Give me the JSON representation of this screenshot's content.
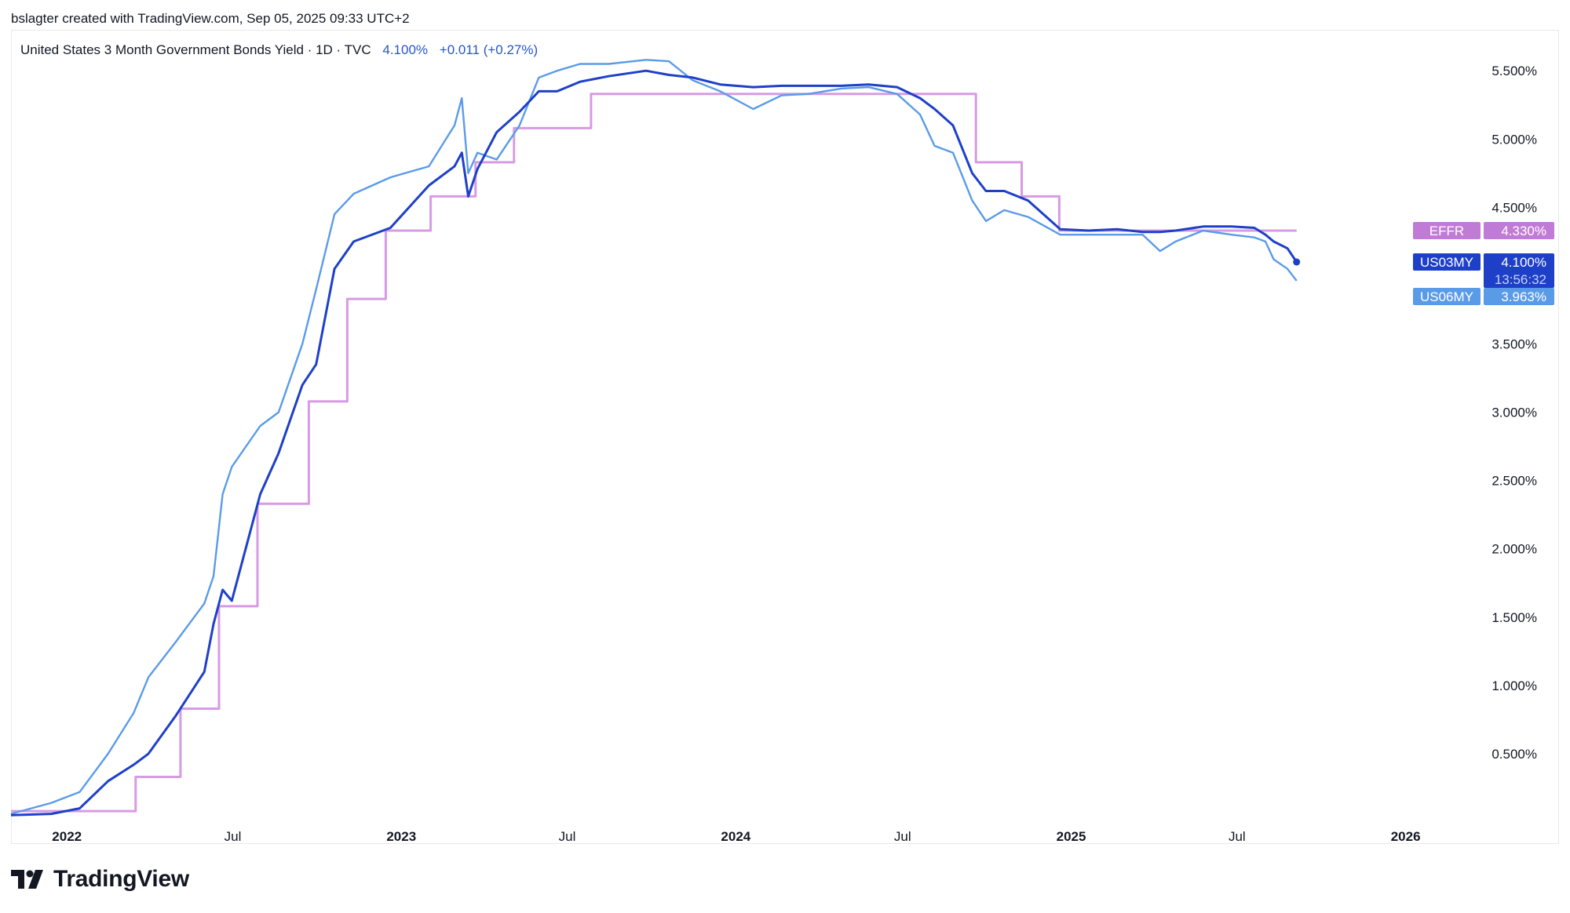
{
  "header": {
    "credit": "bslagter created with TradingView.com, Sep 05, 2025 09:33 UTC+2"
  },
  "legend": {
    "symbol": "United States 3 Month Government Bonds Yield · 1D · TVC",
    "last": "4.100%",
    "change": "+0.011 (+0.27%)"
  },
  "footer": {
    "brand": "TradingView",
    "logo_icon": "tradingview-logo-icon"
  },
  "colors": {
    "us03my": "#1e40c8",
    "us06my": "#5a9be8",
    "effr": "#d79be3",
    "grid": "#ffffff",
    "axis_text": "#131722"
  },
  "chart_data": {
    "type": "line",
    "title": "United States 3 Month Government Bonds Yield · 1D · TVC",
    "x_type": "date",
    "xlim": [
      "2021-11-01",
      "2026-03-10"
    ],
    "ylim": [
      0.0,
      5.8
    ],
    "grid": false,
    "x_ticks": [
      {
        "label": "2022",
        "date": "2022-01-01",
        "bold": true
      },
      {
        "label": "Jul",
        "date": "2022-07-01",
        "bold": false
      },
      {
        "label": "2023",
        "date": "2023-01-01",
        "bold": true
      },
      {
        "label": "Jul",
        "date": "2023-07-01",
        "bold": false
      },
      {
        "label": "2024",
        "date": "2024-01-01",
        "bold": true
      },
      {
        "label": "Jul",
        "date": "2024-07-01",
        "bold": false
      },
      {
        "label": "2025",
        "date": "2025-01-01",
        "bold": true
      },
      {
        "label": "Jul",
        "date": "2025-07-01",
        "bold": false
      },
      {
        "label": "2026",
        "date": "2026-01-01",
        "bold": true
      }
    ],
    "y_ticks": [
      {
        "label": "0.500%",
        "value": 0.5
      },
      {
        "label": "1.000%",
        "value": 1.0
      },
      {
        "label": "1.500%",
        "value": 1.5
      },
      {
        "label": "2.000%",
        "value": 2.0
      },
      {
        "label": "2.500%",
        "value": 2.5
      },
      {
        "label": "3.000%",
        "value": 3.0
      },
      {
        "label": "3.500%",
        "value": 3.5
      },
      {
        "label": "4.000%",
        "value": 4.0
      },
      {
        "label": "4.500%",
        "value": 4.5
      },
      {
        "label": "5.000%",
        "value": 5.0
      },
      {
        "label": "5.500%",
        "value": 5.5
      }
    ],
    "series": [
      {
        "name": "EFFR",
        "color": "#d79be3",
        "shape": "step",
        "label_value": "4.330%",
        "points": [
          [
            "2021-11-01",
            0.08
          ],
          [
            "2022-03-17",
            0.33
          ],
          [
            "2022-05-05",
            0.83
          ],
          [
            "2022-06-16",
            1.58
          ],
          [
            "2022-07-28",
            2.33
          ],
          [
            "2022-09-22",
            3.08
          ],
          [
            "2022-11-03",
            3.83
          ],
          [
            "2022-12-15",
            4.33
          ],
          [
            "2023-02-02",
            4.58
          ],
          [
            "2023-03-23",
            4.83
          ],
          [
            "2023-05-04",
            5.08
          ],
          [
            "2023-07-27",
            5.33
          ],
          [
            "2024-09-19",
            4.83
          ],
          [
            "2024-11-08",
            4.58
          ],
          [
            "2024-12-19",
            4.33
          ],
          [
            "2025-09-04",
            4.33
          ]
        ]
      },
      {
        "name": "US06MY",
        "color": "#5a9be8",
        "shape": "line",
        "label_value": "3.963%",
        "points": [
          [
            "2021-11-01",
            0.06
          ],
          [
            "2021-12-15",
            0.14
          ],
          [
            "2022-01-15",
            0.22
          ],
          [
            "2022-02-15",
            0.5
          ],
          [
            "2022-03-15",
            0.8
          ],
          [
            "2022-03-31",
            1.06
          ],
          [
            "2022-04-30",
            1.32
          ],
          [
            "2022-05-31",
            1.6
          ],
          [
            "2022-06-10",
            1.8
          ],
          [
            "2022-06-20",
            2.4
          ],
          [
            "2022-06-30",
            2.6
          ],
          [
            "2022-07-31",
            2.9
          ],
          [
            "2022-08-20",
            3.0
          ],
          [
            "2022-09-15",
            3.5
          ],
          [
            "2022-09-30",
            3.9
          ],
          [
            "2022-10-20",
            4.45
          ],
          [
            "2022-11-10",
            4.6
          ],
          [
            "2022-12-20",
            4.72
          ],
          [
            "2023-01-31",
            4.8
          ],
          [
            "2023-02-28",
            5.1
          ],
          [
            "2023-03-08",
            5.3
          ],
          [
            "2023-03-15",
            4.75
          ],
          [
            "2023-03-25",
            4.9
          ],
          [
            "2023-04-15",
            4.85
          ],
          [
            "2023-05-10",
            5.1
          ],
          [
            "2023-05-31",
            5.45
          ],
          [
            "2023-06-20",
            5.5
          ],
          [
            "2023-07-15",
            5.55
          ],
          [
            "2023-08-15",
            5.55
          ],
          [
            "2023-09-25",
            5.58
          ],
          [
            "2023-10-20",
            5.57
          ],
          [
            "2023-11-15",
            5.43
          ],
          [
            "2023-12-15",
            5.35
          ],
          [
            "2024-01-20",
            5.22
          ],
          [
            "2024-02-20",
            5.32
          ],
          [
            "2024-03-20",
            5.33
          ],
          [
            "2024-04-25",
            5.37
          ],
          [
            "2024-05-25",
            5.38
          ],
          [
            "2024-06-25",
            5.33
          ],
          [
            "2024-07-20",
            5.18
          ],
          [
            "2024-08-05",
            4.95
          ],
          [
            "2024-08-25",
            4.9
          ],
          [
            "2024-09-15",
            4.55
          ],
          [
            "2024-09-30",
            4.4
          ],
          [
            "2024-10-20",
            4.48
          ],
          [
            "2024-11-15",
            4.43
          ],
          [
            "2024-12-20",
            4.3
          ],
          [
            "2025-01-20",
            4.3
          ],
          [
            "2025-02-20",
            4.3
          ],
          [
            "2025-03-20",
            4.3
          ],
          [
            "2025-04-08",
            4.18
          ],
          [
            "2025-04-25",
            4.25
          ],
          [
            "2025-05-25",
            4.33
          ],
          [
            "2025-06-25",
            4.3
          ],
          [
            "2025-07-20",
            4.28
          ],
          [
            "2025-08-01",
            4.25
          ],
          [
            "2025-08-10",
            4.12
          ],
          [
            "2025-08-25",
            4.05
          ],
          [
            "2025-09-04",
            3.963
          ]
        ]
      },
      {
        "name": "US03MY",
        "color": "#1e40c8",
        "shape": "line",
        "label_value": "4.100%",
        "label_extra": "13:56:32",
        "points": [
          [
            "2021-11-01",
            0.05
          ],
          [
            "2021-12-15",
            0.06
          ],
          [
            "2022-01-15",
            0.1
          ],
          [
            "2022-02-15",
            0.3
          ],
          [
            "2022-03-15",
            0.42
          ],
          [
            "2022-03-31",
            0.5
          ],
          [
            "2022-04-30",
            0.78
          ],
          [
            "2022-05-31",
            1.1
          ],
          [
            "2022-06-10",
            1.45
          ],
          [
            "2022-06-20",
            1.7
          ],
          [
            "2022-06-30",
            1.62
          ],
          [
            "2022-07-31",
            2.4
          ],
          [
            "2022-08-20",
            2.7
          ],
          [
            "2022-09-15",
            3.2
          ],
          [
            "2022-09-30",
            3.35
          ],
          [
            "2022-10-20",
            4.05
          ],
          [
            "2022-11-10",
            4.25
          ],
          [
            "2022-12-20",
            4.35
          ],
          [
            "2023-01-31",
            4.66
          ],
          [
            "2023-02-28",
            4.8
          ],
          [
            "2023-03-08",
            4.9
          ],
          [
            "2023-03-15",
            4.58
          ],
          [
            "2023-03-25",
            4.78
          ],
          [
            "2023-04-15",
            5.05
          ],
          [
            "2023-05-10",
            5.2
          ],
          [
            "2023-05-31",
            5.35
          ],
          [
            "2023-06-20",
            5.35
          ],
          [
            "2023-07-15",
            5.42
          ],
          [
            "2023-08-15",
            5.46
          ],
          [
            "2023-09-25",
            5.5
          ],
          [
            "2023-10-20",
            5.47
          ],
          [
            "2023-11-15",
            5.45
          ],
          [
            "2023-12-15",
            5.4
          ],
          [
            "2024-01-20",
            5.38
          ],
          [
            "2024-02-20",
            5.39
          ],
          [
            "2024-03-20",
            5.39
          ],
          [
            "2024-04-25",
            5.39
          ],
          [
            "2024-05-25",
            5.4
          ],
          [
            "2024-06-25",
            5.38
          ],
          [
            "2024-07-20",
            5.3
          ],
          [
            "2024-08-05",
            5.22
          ],
          [
            "2024-08-25",
            5.1
          ],
          [
            "2024-09-15",
            4.75
          ],
          [
            "2024-09-30",
            4.62
          ],
          [
            "2024-10-20",
            4.62
          ],
          [
            "2024-11-15",
            4.55
          ],
          [
            "2024-12-20",
            4.34
          ],
          [
            "2025-01-20",
            4.33
          ],
          [
            "2025-02-20",
            4.34
          ],
          [
            "2025-03-20",
            4.32
          ],
          [
            "2025-04-08",
            4.32
          ],
          [
            "2025-04-25",
            4.33
          ],
          [
            "2025-05-25",
            4.36
          ],
          [
            "2025-06-25",
            4.36
          ],
          [
            "2025-07-20",
            4.35
          ],
          [
            "2025-08-01",
            4.3
          ],
          [
            "2025-08-10",
            4.25
          ],
          [
            "2025-08-25",
            4.2
          ],
          [
            "2025-09-04",
            4.1
          ]
        ]
      }
    ]
  }
}
